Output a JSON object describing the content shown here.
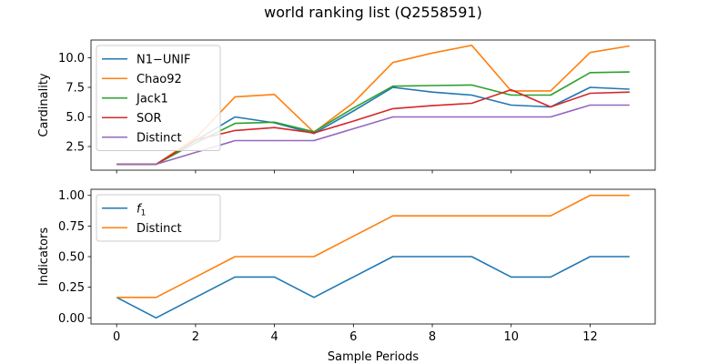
{
  "chart_data": {
    "title": "world ranking list (Q2558591)",
    "xlabel": "Sample Periods",
    "x_ticks": [
      0,
      2,
      4,
      6,
      8,
      10,
      12
    ],
    "x": [
      0,
      1,
      2,
      3,
      4,
      5,
      6,
      7,
      8,
      9,
      10,
      11,
      12,
      13
    ],
    "xlim": [
      -0.65,
      13.65
    ],
    "panels": [
      {
        "type": "line",
        "ylabel": "Cardinality",
        "ylim": [
          0.5,
          11.5
        ],
        "y_ticks": [
          2.5,
          5.0,
          7.5,
          10.0
        ],
        "y_tick_labels": [
          "2.5",
          "5.0",
          "7.5",
          "10.0"
        ],
        "legend_placement": "top-left",
        "series": [
          {
            "name": "N1−UNIF",
            "color": "#1f77b4",
            "values": [
              1,
              1,
              3,
              5,
              4.5,
              3.6,
              5.5,
              7.5,
              7.1,
              6.85,
              6.0,
              5.85,
              7.5,
              7.35
            ]
          },
          {
            "name": "Chao92",
            "color": "#ff7f0e",
            "values": [
              1,
              1,
              3.2,
              6.7,
              6.9,
              3.7,
              6.2,
              9.6,
              10.4,
              11.05,
              7.2,
              7.2,
              10.45,
              11.0
            ]
          },
          {
            "name": "Jack1",
            "color": "#2ca02c",
            "values": [
              1,
              1,
              2.8,
              4.45,
              4.55,
              3.75,
              5.75,
              7.6,
              7.65,
              7.7,
              6.85,
              6.85,
              8.75,
              8.8
            ]
          },
          {
            "name": "SOR",
            "color": "#d62728",
            "values": [
              1,
              1,
              3.05,
              3.85,
              4.1,
              3.65,
              4.65,
              5.7,
              5.95,
              6.15,
              7.3,
              5.85,
              7.0,
              7.1
            ]
          },
          {
            "name": "Distinct",
            "color": "#9467bd",
            "values": [
              1,
              1,
              2,
              3,
              3,
              3,
              4,
              5,
              5,
              5,
              5,
              5,
              6,
              6
            ]
          }
        ]
      },
      {
        "type": "line",
        "ylabel": "Indicators",
        "ylim": [
          -0.05,
          1.05
        ],
        "y_ticks": [
          0.0,
          0.25,
          0.5,
          0.75,
          1.0
        ],
        "y_tick_labels": [
          "0.00",
          "0.25",
          "0.50",
          "0.75",
          "1.00"
        ],
        "legend_placement": "top-left",
        "series": [
          {
            "name": "f1",
            "color": "#1f77b4",
            "values": [
              0.1667,
              0.0,
              0.1667,
              0.3333,
              0.3333,
              0.1667,
              0.3333,
              0.5,
              0.5,
              0.5,
              0.3333,
              0.3333,
              0.5,
              0.5
            ]
          },
          {
            "name": "Distinct",
            "color": "#ff7f0e",
            "values": [
              0.1667,
              0.1667,
              0.3333,
              0.5,
              0.5,
              0.5,
              0.6667,
              0.8333,
              0.8333,
              0.8333,
              0.8333,
              0.8333,
              1.0,
              1.0
            ]
          }
        ]
      }
    ]
  }
}
